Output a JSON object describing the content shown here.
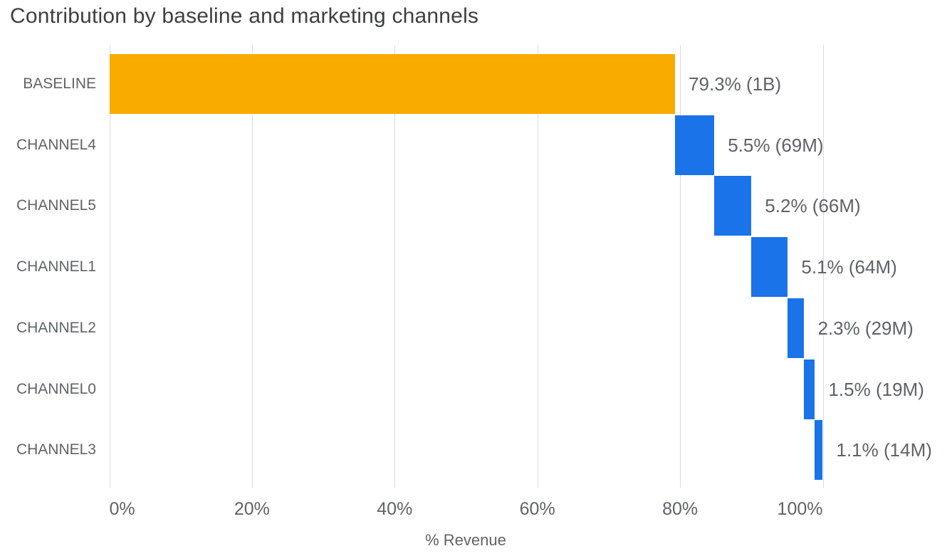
{
  "title": "Contribution by baseline and marketing channels",
  "palette": {
    "bar_baseline": "#F9AB00",
    "bar_channel": "#1A73E8",
    "grid_line": "#DADCE0",
    "axis_text": "#5F6368",
    "title_text": "#3C4043",
    "background": "#FFFFFF"
  },
  "chart_data": {
    "type": "bar",
    "subtype": "horizontal-waterfall",
    "title": "Contribution by baseline and marketing channels",
    "xlabel": "% Revenue",
    "x_unit": "%",
    "xlim": [
      0,
      117
    ],
    "grid": true,
    "legend": "none",
    "x_ticks": [
      {
        "pct": 0,
        "label": "0%",
        "align": "left"
      },
      {
        "pct": 20,
        "label": "20%",
        "align": "center"
      },
      {
        "pct": 40,
        "label": "40%",
        "align": "center"
      },
      {
        "pct": 60,
        "label": "60%",
        "align": "center"
      },
      {
        "pct": 80,
        "label": "80%",
        "align": "center"
      },
      {
        "pct": 100,
        "label": "100%",
        "align": "right"
      }
    ],
    "categories": [
      "BASELINE",
      "CHANNEL4",
      "CHANNEL5",
      "CHANNEL1",
      "CHANNEL2",
      "CHANNEL0",
      "CHANNEL3"
    ],
    "rows": [
      {
        "category": "BASELINE",
        "start_pct": 0.0,
        "pct": 79.3,
        "value": "1B",
        "label": "79.3% (1B)",
        "role": "baseline"
      },
      {
        "category": "CHANNEL4",
        "start_pct": 79.3,
        "pct": 5.5,
        "value": "69M",
        "label": "5.5% (69M)",
        "role": "channel"
      },
      {
        "category": "CHANNEL5",
        "start_pct": 84.8,
        "pct": 5.2,
        "value": "66M",
        "label": "5.2% (66M)",
        "role": "channel"
      },
      {
        "category": "CHANNEL1",
        "start_pct": 90.0,
        "pct": 5.1,
        "value": "64M",
        "label": "5.1% (64M)",
        "role": "channel"
      },
      {
        "category": "CHANNEL2",
        "start_pct": 95.1,
        "pct": 2.3,
        "value": "29M",
        "label": "2.3% (29M)",
        "role": "channel"
      },
      {
        "category": "CHANNEL0",
        "start_pct": 97.4,
        "pct": 1.5,
        "value": "19M",
        "label": "1.5% (19M)",
        "role": "channel"
      },
      {
        "category": "CHANNEL3",
        "start_pct": 98.9,
        "pct": 1.1,
        "value": "14M",
        "label": "1.1% (14M)",
        "role": "channel"
      }
    ],
    "colors": {
      "baseline": "#F9AB00",
      "channel": "#1A73E8"
    }
  }
}
